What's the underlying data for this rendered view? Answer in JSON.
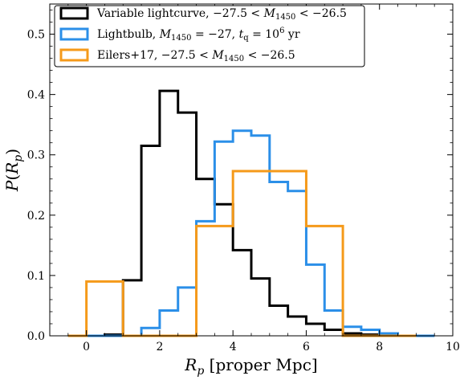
{
  "chart_data": {
    "type": "histogram",
    "xlabel": "R_p [proper Mpc]",
    "ylabel": "P(R_p)",
    "xlim": [
      -1,
      10
    ],
    "ylim": [
      0,
      0.55
    ],
    "xticks": [
      0,
      2,
      4,
      6,
      8,
      10
    ],
    "yticks": [
      0.0,
      0.1,
      0.2,
      0.3,
      0.4,
      0.5
    ],
    "grid": false,
    "legend_position": "top-left",
    "series": [
      {
        "name": "Variable lightcurve, −27.5 < M1450 < −26.5",
        "color": "#000000",
        "bin_edges": [
          -0.5,
          0,
          0.5,
          1,
          1.5,
          2,
          2.5,
          3,
          3.5,
          4,
          4.5,
          5,
          5.5,
          6,
          6.5,
          7,
          7.5,
          8,
          8.5,
          9,
          9.5
        ],
        "values": [
          0.0,
          0.0,
          0.002,
          0.092,
          0.315,
          0.406,
          0.37,
          0.26,
          0.218,
          0.142,
          0.095,
          0.05,
          0.032,
          0.02,
          0.01,
          0.004,
          0.002,
          0.0,
          0.0,
          0.0
        ]
      },
      {
        "name": "Lightbulb, M1450 = −27, tq = 10^6 yr",
        "color": "#2b8fe8",
        "bin_edges": [
          -0.5,
          0,
          0.5,
          1,
          1.5,
          2,
          2.5,
          3,
          3.5,
          4,
          4.5,
          5,
          5.5,
          6,
          6.5,
          7,
          7.5,
          8,
          8.5,
          9,
          9.5
        ],
        "values": [
          0.0,
          0.0,
          0.0,
          0.0,
          0.013,
          0.042,
          0.08,
          0.19,
          0.322,
          0.34,
          0.332,
          0.255,
          0.24,
          0.118,
          0.042,
          0.015,
          0.01,
          0.004,
          0.0,
          0.0
        ]
      },
      {
        "name": "Eilers+17, −27.5 < M1450 < −26.5",
        "color": "#f59a1a",
        "bin_edges": [
          -0.5,
          0,
          1,
          2,
          3,
          4,
          5,
          6,
          7,
          8,
          9
        ],
        "values": [
          0.0,
          0.09,
          0.0,
          0.0,
          0.182,
          0.273,
          0.273,
          0.182,
          0.0,
          0.0
        ]
      }
    ]
  }
}
